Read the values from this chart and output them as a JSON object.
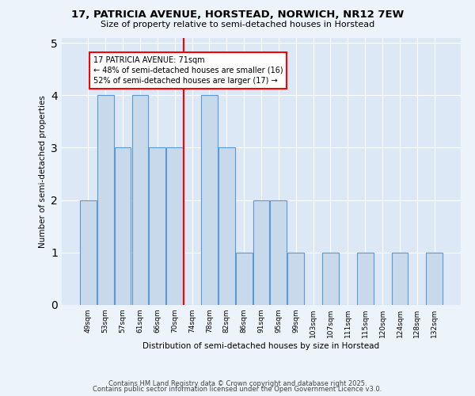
{
  "title1": "17, PATRICIA AVENUE, HORSTEAD, NORWICH, NR12 7EW",
  "title2": "Size of property relative to semi-detached houses in Horstead",
  "xlabel": "Distribution of semi-detached houses by size in Horstead",
  "ylabel": "Number of semi-detached properties",
  "categories": [
    "49sqm",
    "53sqm",
    "57sqm",
    "61sqm",
    "66sqm",
    "70sqm",
    "74sqm",
    "78sqm",
    "82sqm",
    "86sqm",
    "91sqm",
    "95sqm",
    "99sqm",
    "103sqm",
    "107sqm",
    "111sqm",
    "115sqm",
    "120sqm",
    "124sqm",
    "128sqm",
    "132sqm"
  ],
  "values": [
    2,
    4,
    3,
    4,
    3,
    3,
    0,
    4,
    3,
    1,
    2,
    2,
    1,
    0,
    1,
    0,
    1,
    0,
    1,
    0,
    1
  ],
  "bar_color": "#c9d9ec",
  "bar_edge_color": "#5b9bd5",
  "ref_line_index": 6,
  "ref_line_label": "17 PATRICIA AVENUE: 71sqm",
  "smaller_pct": "48%",
  "smaller_n": 16,
  "larger_pct": "52%",
  "larger_n": 17,
  "ylim": [
    0,
    5
  ],
  "yticks": [
    0,
    1,
    2,
    3,
    4,
    5
  ],
  "bg_color": "#dce8f5",
  "fig_bg_color": "#edf3fa",
  "annotation_box_color": "white",
  "annotation_box_edge": "red",
  "ref_line_color": "red",
  "title1_fontsize": 9.5,
  "title2_fontsize": 8,
  "footer1": "Contains HM Land Registry data © Crown copyright and database right 2025.",
  "footer2": "Contains public sector information licensed under the Open Government Licence v3.0.",
  "footer_fontsize": 6
}
